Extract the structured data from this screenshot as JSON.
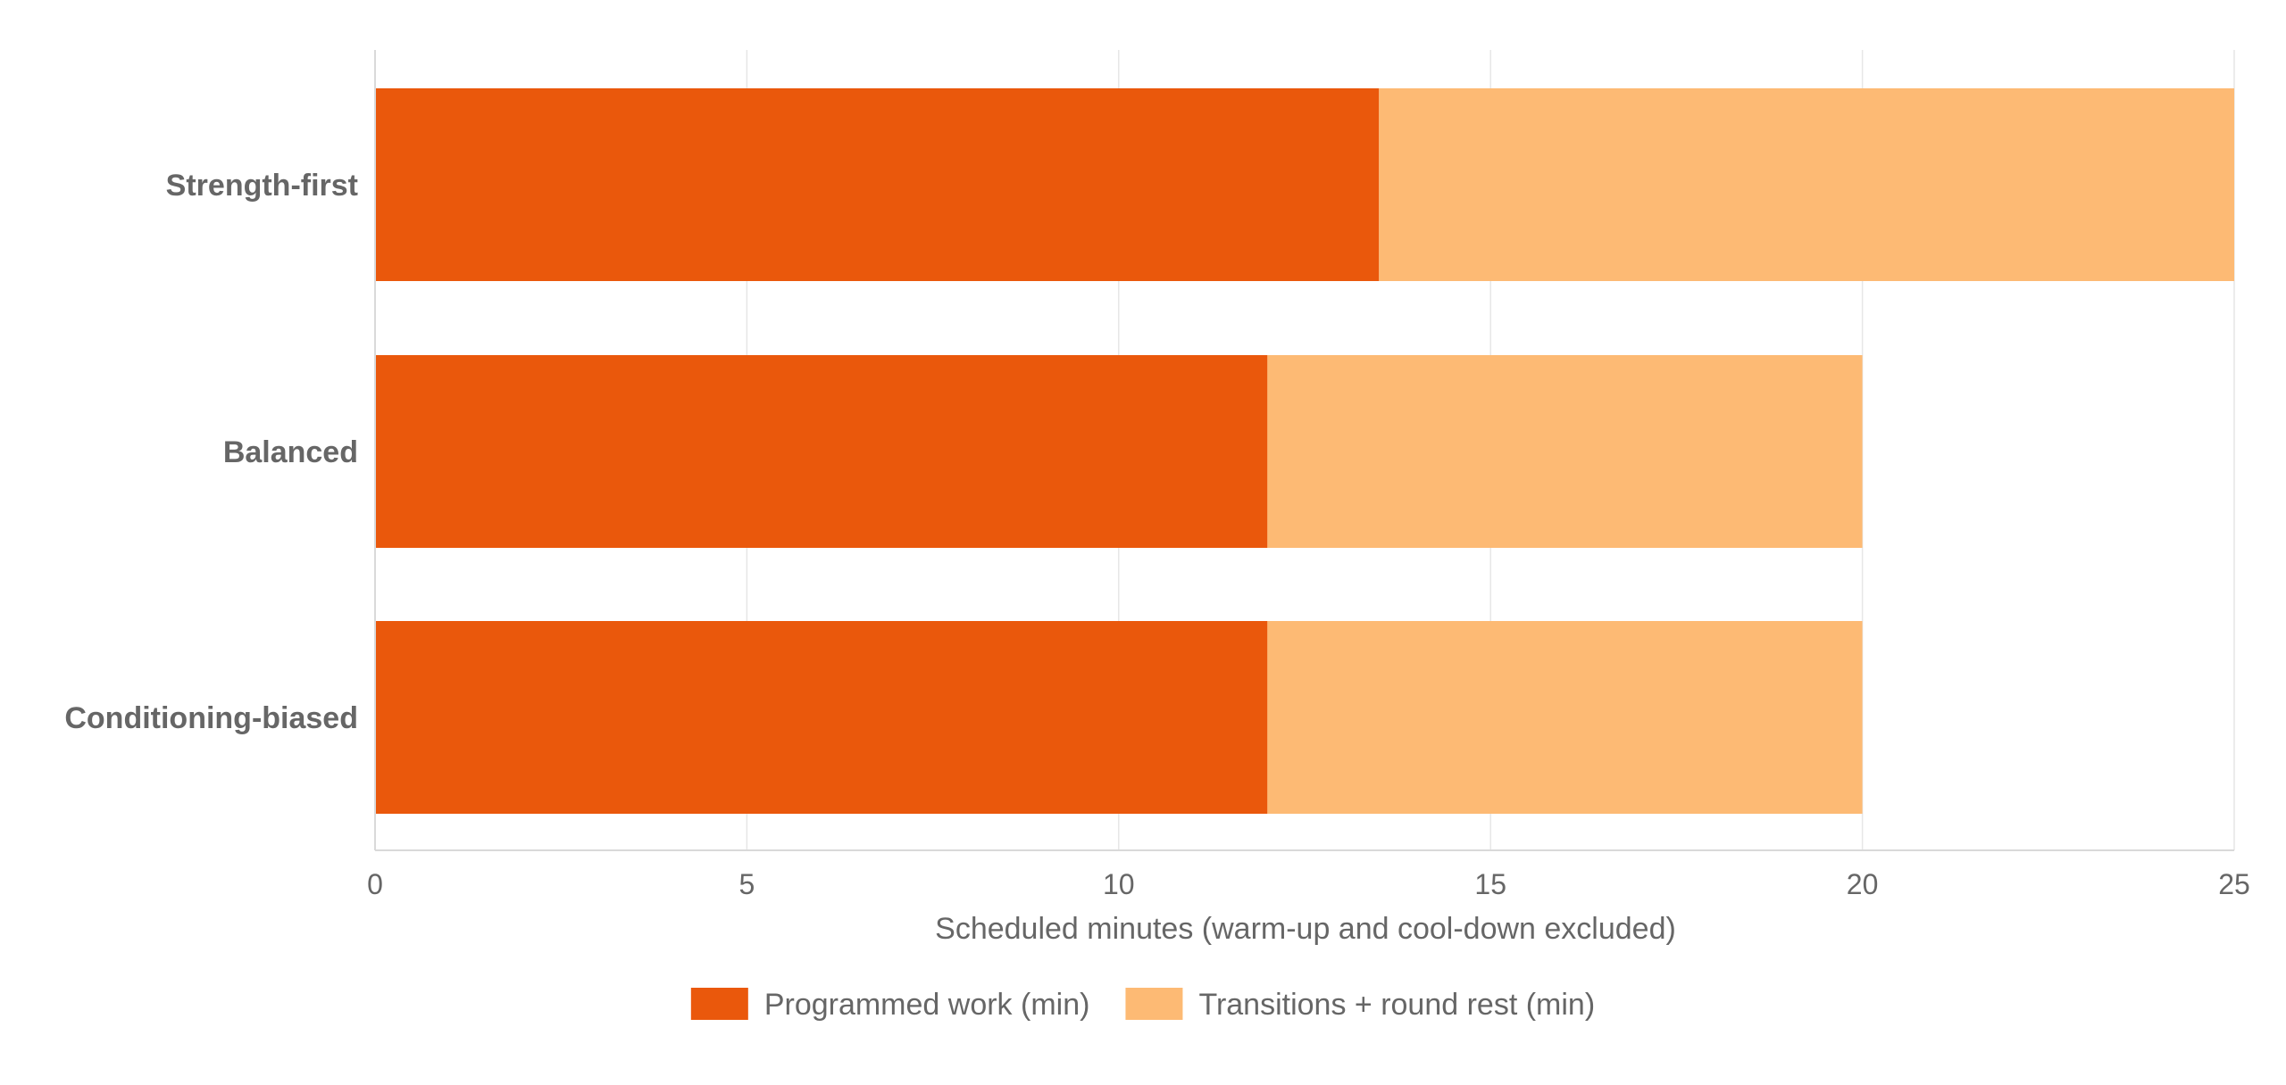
{
  "chart_data": {
    "type": "bar",
    "orientation": "horizontal",
    "stacked": true,
    "categories": [
      "Strength-first",
      "Balanced",
      "Conditioning-biased"
    ],
    "series": [
      {
        "name": "Programmed work (min)",
        "values": [
          13.5,
          12,
          12
        ],
        "color": "#ea580c"
      },
      {
        "name": "Transitions + round rest (min)",
        "values": [
          11.5,
          8,
          8
        ],
        "color": "#fdba74"
      }
    ],
    "xlabel": "Scheduled minutes (warm-up and cool-down excluded)",
    "xlim": [
      0,
      25
    ],
    "xticks": [
      0,
      5,
      10,
      15,
      20,
      25
    ],
    "grid": true,
    "legend_position": "bottom-center"
  }
}
